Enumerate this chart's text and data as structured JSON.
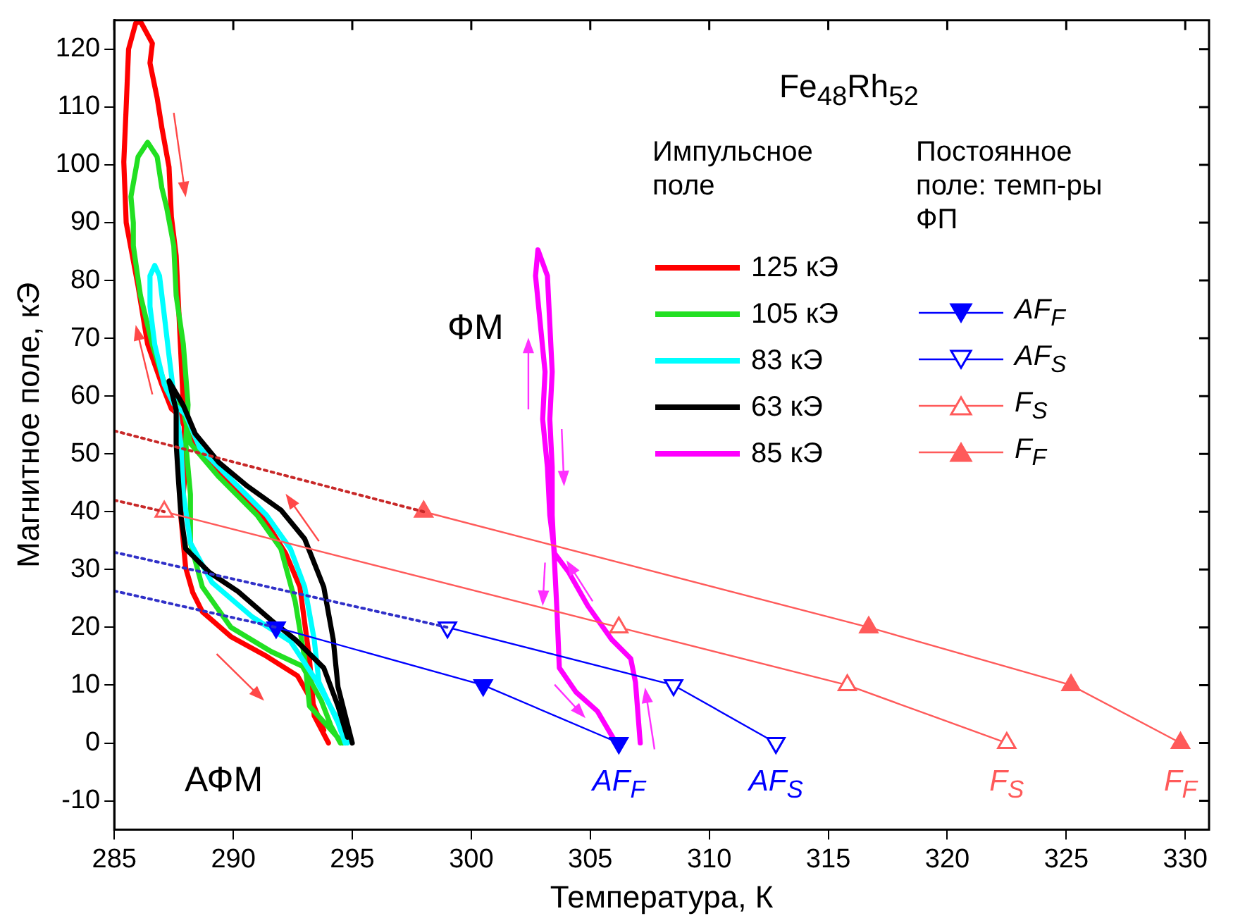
{
  "chart_data": {
    "type": "line",
    "title": "Fe$_{48}$Rh$_{52}$",
    "xlabel": "Температура, К",
    "ylabel": "Магнитное поле, кЭ",
    "legend_title": "Импульсное поле",
    "legend": "top right",
    "xlim": [
      285,
      331
    ],
    "xticks": [
      285,
      290,
      295,
      300,
      305,
      310,
      315,
      320,
      325,
      330
    ],
    "ylim": [
      -15,
      125
    ],
    "yticks": [
      -10,
      0,
      10,
      20,
      30,
      40,
      50,
      60,
      70,
      80,
      90,
      100,
      110,
      120
    ],
    "series": [
      {
        "name": "125 кЭ",
        "color": "#ff0000",
        "marker": "none",
        "line_style": "solid",
        "x": [
          294.0,
          293.4,
          293.2,
          292.8,
          292.2,
          291.2,
          289.8,
          288.4,
          287.7,
          287.4,
          287.0,
          286.4,
          286.0,
          285.5,
          285.4,
          285.5,
          285.6,
          285.9,
          286.1,
          286.6,
          286.5,
          286.8,
          287.0,
          287.3,
          287.4,
          287.6,
          287.7,
          287.8,
          287.9,
          288.0,
          287.8,
          288.0,
          288.3,
          288.7,
          289.9,
          291.4,
          292.7,
          293.3,
          293.8
        ],
        "values": [
          0,
          4.7,
          14.6,
          27,
          32.8,
          39.4,
          45.2,
          51,
          56.8,
          57.8,
          62,
          69,
          79,
          90,
          100.5,
          110,
          120,
          124.5,
          124.8,
          121,
          117.6,
          111.6,
          106.4,
          99.6,
          91,
          84.3,
          75.6,
          67,
          58.5,
          47.5,
          39,
          30.3,
          26,
          22.7,
          18.4,
          15,
          11.6,
          7.3,
          2.2
        ]
      },
      {
        "name": "105 кЭ",
        "color": "#22e022",
        "marker": "none",
        "line_style": "solid",
        "x": [
          294.6,
          293.2,
          293.0,
          292.6,
          292.0,
          291.0,
          289.4,
          288.2,
          287.9,
          287.2,
          286.6,
          286.1,
          285.8,
          285.8,
          285.7,
          286.0,
          286.4,
          286.8,
          287.0,
          287.2,
          287.5,
          287.6,
          287.9,
          288.1,
          288.0,
          288.2,
          288.2,
          288.7,
          289.9,
          291.6,
          292.9,
          293.7,
          294.1,
          294.5
        ],
        "values": [
          0,
          6.4,
          14.6,
          24.5,
          33.6,
          39.4,
          46,
          51.8,
          57.6,
          61,
          68.9,
          77.4,
          86,
          90,
          94.5,
          101.4,
          103.9,
          101.4,
          96,
          92.6,
          86,
          77.4,
          69,
          58.5,
          52,
          43,
          34.6,
          27,
          20,
          15.8,
          13.3,
          7.3,
          3,
          0
        ]
      },
      {
        "name": "83 кЭ",
        "color": "#00ffff",
        "marker": "none",
        "line_style": "solid",
        "x": [
          294.8,
          293.6,
          293.4,
          293.0,
          292.4,
          291.4,
          290.0,
          288.6,
          288.0,
          287.5,
          287.1,
          286.7,
          286.5,
          286.5,
          286.7,
          286.9,
          287.1,
          287.3,
          287.5,
          287.8,
          287.9,
          288.2,
          289.1,
          290.8,
          292.4,
          293.5,
          294.3,
          294.7
        ],
        "values": [
          0,
          10.5,
          17.9,
          27,
          33.6,
          39.4,
          45.2,
          51,
          56.8,
          58.6,
          62,
          68.9,
          75.5,
          80.8,
          82.6,
          80.8,
          74,
          67,
          60.3,
          51.8,
          43.2,
          34.6,
          27.8,
          21.8,
          17.6,
          10.7,
          4.7,
          0
        ]
      },
      {
        "name": "63 кЭ",
        "color": "#000000",
        "marker": "none",
        "line_style": "solid",
        "x": [
          295.0,
          294.4,
          294.2,
          293.8,
          293.0,
          292.0,
          290.6,
          289.4,
          288.4,
          287.9,
          287.3,
          287.6,
          287.6,
          287.7,
          287.8,
          288.0,
          289.0,
          290.2,
          291.6,
          292.6,
          293.8,
          294.4,
          294.8
        ],
        "values": [
          0,
          9.7,
          17.9,
          27,
          35.3,
          40.3,
          44.4,
          48.5,
          53.5,
          58.4,
          62.6,
          57.6,
          51.8,
          45.2,
          39.4,
          33.6,
          29.5,
          26.2,
          21.2,
          17.9,
          13,
          6.4,
          1
        ]
      },
      {
        "name": "85 кЭ",
        "color": "#ff00ff",
        "marker": "none",
        "line_style": "solid",
        "x": [
          307.1,
          306.9,
          306.7,
          305.9,
          304.9,
          304.1,
          303.5,
          303.3,
          303.2,
          303.0,
          303.1,
          302.9,
          302.7,
          302.8,
          303.2,
          303.3,
          303.4,
          303.3,
          303.4,
          303.4,
          303.5,
          303.6,
          303.7,
          304.4,
          305.3,
          306.0
        ],
        "values": [
          0,
          10.5,
          14.6,
          17.9,
          23.7,
          29.5,
          32.8,
          39.4,
          47.7,
          56,
          64.2,
          72.5,
          80.8,
          85.3,
          80.8,
          72.5,
          64.2,
          56,
          47.7,
          39.4,
          31.1,
          22.9,
          13,
          8.8,
          5.5,
          0.6
        ]
      },
      {
        "name": "AF$_{F}$",
        "color": "#0000ff",
        "marker": "triangle_down",
        "line_style": "solid",
        "x": [
          291.8,
          300.5,
          306.2
        ],
        "values": [
          20,
          10,
          0
        ]
      },
      {
        "name": "AF$_{S}$",
        "color": "#0000ff",
        "marker": "triangle_down_open",
        "line_style": "solid",
        "x": [
          299.0,
          308.5,
          312.8
        ],
        "values": [
          20,
          10,
          0
        ]
      },
      {
        "name": "F$_{S}$",
        "color": "#ff5a5a",
        "marker": "triangle_open",
        "line_style": "solid",
        "x": [
          287.1,
          306.2,
          315.8,
          322.5
        ],
        "values": [
          40,
          20,
          10,
          0
        ]
      },
      {
        "name": "F$_{F}$",
        "color": "#ff5a5a",
        "marker": "triangle",
        "line_style": "solid",
        "x": [
          298.0,
          316.7,
          325.2,
          329.8
        ],
        "values": [
          40,
          20,
          10,
          0
        ]
      },
      {
        "color": "#3030c8",
        "marker": "none",
        "line_style": "dotted",
        "x": [
          285,
          291.8
        ],
        "values": [
          26.3,
          20
        ]
      },
      {
        "color": "#3030c8",
        "marker": "none",
        "line_style": "dotted",
        "x": [
          285,
          299.0
        ],
        "values": [
          33,
          20
        ]
      },
      {
        "color": "#c82828",
        "marker": "none",
        "line_style": "dotted",
        "x": [
          285,
          287.1
        ],
        "values": [
          42,
          40
        ]
      },
      {
        "color": "#c82828",
        "marker": "none",
        "line_style": "dotted",
        "x": [
          285,
          298.0
        ],
        "values": [
          54,
          40
        ]
      }
    ],
    "annotations": [
      "ФМ",
      "АФМ",
      "Постоянное поле: темп-ры ФП"
    ]
  }
}
